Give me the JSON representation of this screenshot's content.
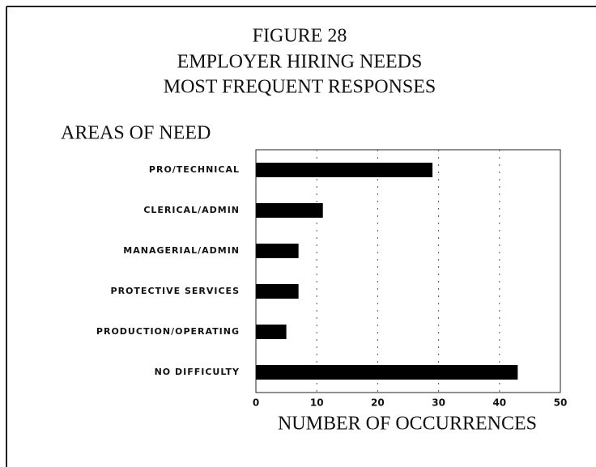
{
  "chart_data": {
    "type": "bar",
    "orientation": "horizontal",
    "title": [
      "FIGURE 28",
      "EMPLOYER HIRING NEEDS",
      "MOST FREQUENT RESPONSES"
    ],
    "y_label": "AREAS OF NEED",
    "x_label": "NUMBER OF OCCURRENCES",
    "categories": [
      "PRO/TECHNICAL",
      "CLERICAL/ADMIN",
      "MANAGERIAL/ADMIN",
      "PROTECTIVE SERVICES",
      "PRODUCTION/OPERATING",
      "NO DIFFICULTY"
    ],
    "values": [
      29,
      11,
      7,
      7,
      5,
      43
    ],
    "color": "#000000",
    "xlim": [
      0,
      50
    ],
    "xticks": [
      0,
      10,
      20,
      30,
      40,
      50
    ],
    "grid": true
  }
}
